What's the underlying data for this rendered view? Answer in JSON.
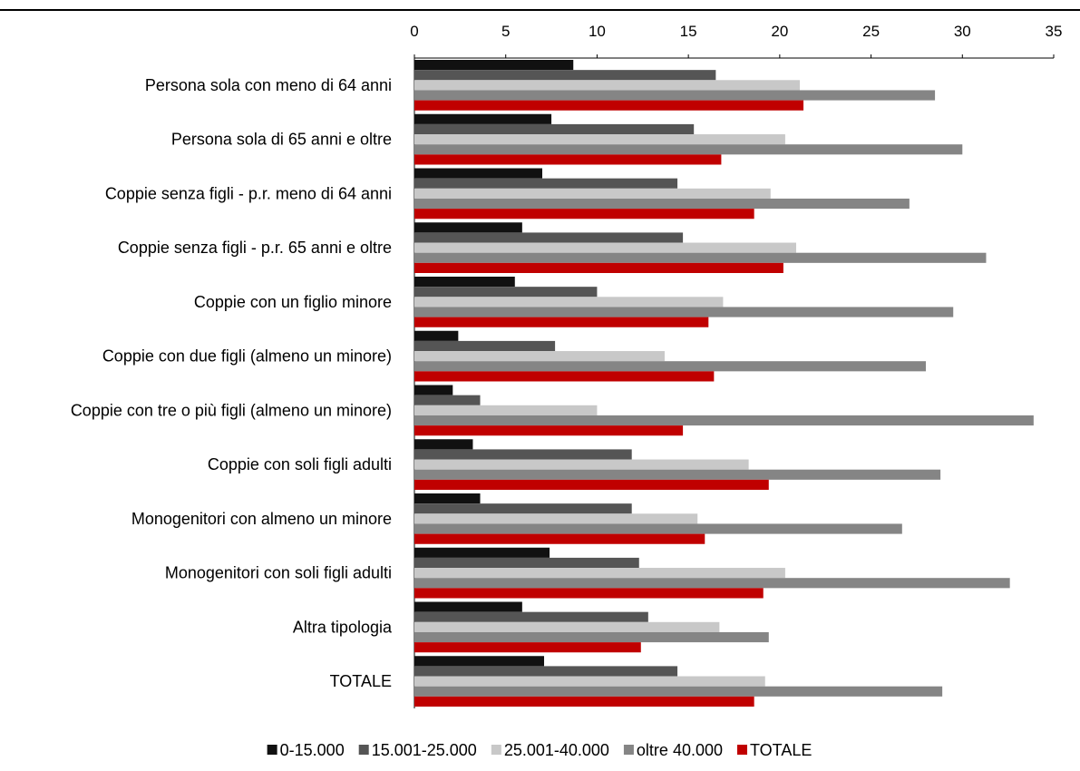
{
  "chart_data": {
    "type": "bar",
    "orientation": "horizontal",
    "title": "",
    "xlabel": "",
    "ylabel": "",
    "xlim": [
      0,
      35
    ],
    "x_ticks": [
      0,
      5,
      10,
      15,
      20,
      25,
      30,
      35
    ],
    "x_axis_position": "top",
    "grid": false,
    "legend_position": "bottom",
    "categories": [
      "Persona sola con meno di 64 anni",
      "Persona sola di 65 anni e oltre",
      "Coppie senza figli - p.r. meno di 64 anni",
      "Coppie senza figli - p.r. 65 anni e oltre",
      "Coppie con un figlio minore",
      "Coppie con due figli (almeno un minore)",
      "Coppie con tre o più figli (almeno un minore)",
      "Coppie con soli figli adulti",
      "Monogenitori con almeno un minore",
      "Monogenitori con soli figli adulti",
      "Altra tipologia",
      "TOTALE"
    ],
    "series": [
      {
        "name": "0-15.000",
        "color": "#111111",
        "values": [
          8.7,
          7.5,
          7.0,
          5.9,
          5.5,
          2.4,
          2.1,
          3.2,
          3.6,
          7.4,
          5.9,
          7.1
        ]
      },
      {
        "name": "15.001-25.000",
        "color": "#555555",
        "values": [
          16.5,
          15.3,
          14.4,
          14.7,
          10.0,
          7.7,
          3.6,
          11.9,
          11.9,
          12.3,
          12.8,
          14.4
        ]
      },
      {
        "name": "25.001-40.000",
        "color": "#c8c8c8",
        "values": [
          21.1,
          20.3,
          19.5,
          20.9,
          16.9,
          13.7,
          10.0,
          18.3,
          15.5,
          20.3,
          16.7,
          19.2
        ]
      },
      {
        "name": "oltre 40.000",
        "color": "#858585",
        "values": [
          28.5,
          30.0,
          27.1,
          31.3,
          29.5,
          28.0,
          33.9,
          28.8,
          26.7,
          32.6,
          19.4,
          28.9
        ]
      },
      {
        "name": "TOTALE",
        "color": "#c00000",
        "values": [
          21.3,
          16.8,
          18.6,
          20.2,
          16.1,
          16.4,
          14.7,
          19.4,
          15.9,
          19.1,
          12.4,
          18.6
        ]
      }
    ]
  }
}
